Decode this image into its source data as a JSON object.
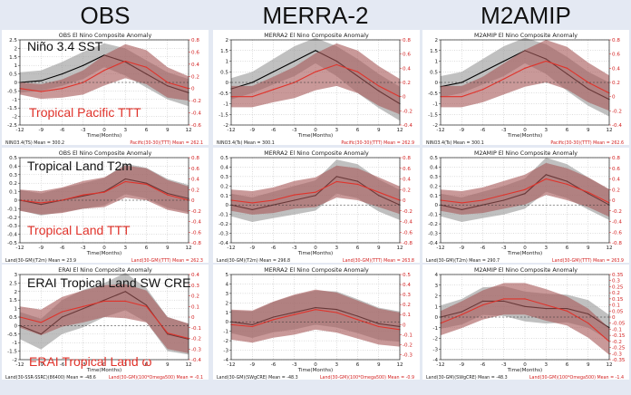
{
  "columns": [
    "OBS",
    "MERRA-2",
    "M2AMIP"
  ],
  "x_ticks": [
    "-12",
    "-9",
    "-6",
    "-3",
    "0",
    "3",
    "6",
    "9",
    "12"
  ],
  "xlabel": "Time(Months)",
  "series_colors": {
    "black_line": "#000000",
    "gray_band": "#9a9a9a",
    "red_line": "#e0332b",
    "red_band": "#a85a5a"
  },
  "chart_data": [
    {
      "type": "line",
      "row": 0,
      "col": 0,
      "title": "OBS El Nino Composite Anomaly",
      "annotation_black": "Niño 3.4 SST",
      "annotation_red": "Tropical Pacific TTT",
      "xlabel": "Time(Months)",
      "x": [
        -12,
        -9,
        -6,
        -3,
        0,
        3,
        6,
        9,
        12
      ],
      "left_ylim": [
        -2.5,
        2.5
      ],
      "left_ticks": [
        "-2.5",
        "-2",
        "-1.5",
        "-1",
        "-0.5",
        "0",
        "0.5",
        "1",
        "1.5",
        "2",
        "2.5"
      ],
      "right_ylim": [
        -0.6,
        0.8
      ],
      "right_ticks": [
        "-0.6",
        "-0.4",
        "-0.2",
        "0",
        "0.2",
        "0.4",
        "0.6",
        "0.8"
      ],
      "series": [
        {
          "axis": "left",
          "values": [
            0.0,
            0.1,
            0.5,
            1.0,
            1.6,
            1.2,
            0.5,
            -0.2,
            -0.6
          ],
          "band": [
            0.6,
            0.6,
            0.7,
            0.8,
            0.7,
            0.8,
            0.8,
            0.8,
            0.8
          ]
        },
        {
          "axis": "right",
          "values": [
            0.0,
            -0.05,
            0.0,
            0.1,
            0.3,
            0.45,
            0.35,
            0.1,
            0.0
          ],
          "band": [
            0.1,
            0.12,
            0.15,
            0.2,
            0.25,
            0.28,
            0.28,
            0.25,
            0.2
          ]
        }
      ],
      "footer_left": "NINO3.4(TS) Mean = 300.2",
      "footer_right": "Pacific(30-30)(TTT) Mean = 262.1"
    },
    {
      "type": "line",
      "row": 0,
      "col": 1,
      "title": "MERRA2 El Nino Composite Anomaly",
      "xlabel": "Time(Months)",
      "x": [
        -12,
        -9,
        -6,
        -3,
        0,
        3,
        6,
        9,
        12
      ],
      "left_ylim": [
        -2,
        2
      ],
      "left_ticks": [
        "-2",
        "-1.5",
        "-1",
        "-0.5",
        "0",
        "0.5",
        "1",
        "1.5",
        "2"
      ],
      "right_ylim": [
        -0.4,
        0.8
      ],
      "right_ticks": [
        "-0.4",
        "-0.2",
        "0",
        "0.2",
        "0.4",
        "0.6",
        "0.8"
      ],
      "series": [
        {
          "axis": "left",
          "values": [
            -0.3,
            0.0,
            0.5,
            1.0,
            1.5,
            1.0,
            0.3,
            -0.4,
            -1.0
          ],
          "band": [
            0.5,
            0.5,
            0.6,
            0.7,
            0.6,
            0.7,
            0.8,
            0.8,
            0.8
          ]
        },
        {
          "axis": "right",
          "values": [
            0.0,
            0.0,
            0.1,
            0.2,
            0.35,
            0.45,
            0.35,
            0.15,
            0.0
          ],
          "band": [
            0.15,
            0.15,
            0.18,
            0.22,
            0.26,
            0.3,
            0.3,
            0.28,
            0.25
          ]
        }
      ],
      "footer_left": "NINO3.4(Ts) Mean = 300.1",
      "footer_right": "Pacific(30-30)(TTT) Mean = 262.9"
    },
    {
      "type": "line",
      "row": 0,
      "col": 2,
      "title": "M2AMIP El Nino Composite Anomaly",
      "xlabel": "Time(Months)",
      "x": [
        -12,
        -9,
        -6,
        -3,
        0,
        3,
        6,
        9,
        12
      ],
      "left_ylim": [
        -2,
        2
      ],
      "left_ticks": [
        "-2",
        "-1.5",
        "-1",
        "-0.5",
        "0",
        "0.5",
        "1",
        "1.5",
        "2"
      ],
      "right_ylim": [
        -0.4,
        0.8
      ],
      "right_ticks": [
        "-0.4",
        "-0.2",
        "0",
        "0.2",
        "0.4",
        "0.6",
        "0.8"
      ],
      "series": [
        {
          "axis": "left",
          "values": [
            -0.2,
            0.0,
            0.5,
            1.0,
            1.5,
            1.1,
            0.4,
            -0.3,
            -0.8
          ],
          "band": [
            0.5,
            0.5,
            0.6,
            0.7,
            0.6,
            0.7,
            0.8,
            0.8,
            0.8
          ]
        },
        {
          "axis": "right",
          "values": [
            0.0,
            0.0,
            0.1,
            0.25,
            0.4,
            0.5,
            0.4,
            0.2,
            0.05
          ],
          "band": [
            0.15,
            0.15,
            0.18,
            0.22,
            0.26,
            0.3,
            0.3,
            0.28,
            0.25
          ]
        }
      ],
      "footer_left": "NINO3.4(Ts) Mean = 300.1",
      "footer_right": "Pacific(30-30)(TTT) Mean = 262.6"
    },
    {
      "type": "line",
      "row": 1,
      "col": 0,
      "title": "OBS El Nino Composite Anomaly",
      "annotation_black": "Tropical Land T2m",
      "annotation_red": "Tropical Land TTT",
      "xlabel": "Time(Months)",
      "x": [
        -12,
        -9,
        -6,
        -3,
        0,
        3,
        6,
        9,
        12
      ],
      "left_ylim": [
        -0.5,
        0.5
      ],
      "left_ticks": [
        "-0.5",
        "-0.4",
        "-0.3",
        "-0.2",
        "-0.1",
        "0",
        "0.1",
        "0.2",
        "0.3",
        "0.4",
        "0.5"
      ],
      "right_ylim": [
        -0.8,
        0.8
      ],
      "right_ticks": [
        "-0.8",
        "-0.6",
        "-0.4",
        "-0.2",
        "0",
        "0.2",
        "0.4",
        "0.6",
        "0.8"
      ],
      "series": [
        {
          "axis": "left",
          "values": [
            0.0,
            -0.05,
            0.0,
            0.05,
            0.1,
            0.25,
            0.2,
            0.08,
            0.02
          ],
          "band": [
            0.12,
            0.13,
            0.14,
            0.15,
            0.16,
            0.18,
            0.18,
            0.17,
            0.16
          ]
        },
        {
          "axis": "right",
          "values": [
            0.0,
            -0.05,
            0.0,
            0.1,
            0.15,
            0.35,
            0.3,
            0.1,
            0.0
          ],
          "band": [
            0.2,
            0.22,
            0.24,
            0.26,
            0.28,
            0.3,
            0.3,
            0.28,
            0.26
          ]
        }
      ],
      "footer_left": "Land(30-GM)(T2m) Mean = 23.9",
      "footer_right": "Land(30-GM)(TTT) Mean = 262.3"
    },
    {
      "type": "line",
      "row": 1,
      "col": 1,
      "title": "MERRA2 El Nino Composite Anomaly",
      "xlabel": "Time(Months)",
      "x": [
        -12,
        -9,
        -6,
        -3,
        0,
        3,
        6,
        9,
        12
      ],
      "left_ylim": [
        -0.4,
        0.5
      ],
      "left_ticks": [
        "-0.4",
        "-0.3",
        "-0.2",
        "-0.1",
        "0",
        "0.1",
        "0.2",
        "0.3",
        "0.4",
        "0.5"
      ],
      "right_ylim": [
        -0.8,
        0.8
      ],
      "right_ticks": [
        "-0.8",
        "-0.6",
        "-0.4",
        "-0.2",
        "0",
        "0.2",
        "0.4",
        "0.6",
        "0.8"
      ],
      "series": [
        {
          "axis": "left",
          "values": [
            0.0,
            -0.05,
            0.0,
            0.05,
            0.1,
            0.3,
            0.25,
            0.1,
            0.0
          ],
          "band": [
            0.12,
            0.13,
            0.14,
            0.15,
            0.16,
            0.18,
            0.18,
            0.17,
            0.16
          ]
        },
        {
          "axis": "right",
          "values": [
            0.0,
            -0.05,
            0.0,
            0.1,
            0.15,
            0.35,
            0.3,
            0.15,
            0.0
          ],
          "band": [
            0.2,
            0.22,
            0.24,
            0.26,
            0.28,
            0.3,
            0.3,
            0.28,
            0.26
          ]
        }
      ],
      "footer_left": "Land(30-GM)(T2m) Mean = 296.8",
      "footer_right": "Land(30-GM)(TTT) Mean = 263.8"
    },
    {
      "type": "line",
      "row": 1,
      "col": 2,
      "title": "M2AMIP El Nino Composite Anomaly",
      "xlabel": "Time(Months)",
      "x": [
        -12,
        -9,
        -6,
        -3,
        0,
        3,
        6,
        9,
        12
      ],
      "left_ylim": [
        -0.4,
        0.5
      ],
      "left_ticks": [
        "-0.4",
        "-0.3",
        "-0.2",
        "-0.1",
        "0",
        "0.1",
        "0.2",
        "0.3",
        "0.4",
        "0.5"
      ],
      "right_ylim": [
        -0.8,
        0.8
      ],
      "right_ticks": [
        "-0.8",
        "-0.6",
        "-0.4",
        "-0.2",
        "0",
        "0.2",
        "0.4",
        "0.6",
        "0.8"
      ],
      "series": [
        {
          "axis": "left",
          "values": [
            0.0,
            -0.05,
            0.0,
            0.05,
            0.12,
            0.32,
            0.25,
            0.12,
            0.0
          ],
          "band": [
            0.12,
            0.13,
            0.14,
            0.15,
            0.16,
            0.18,
            0.18,
            0.17,
            0.16
          ]
        },
        {
          "axis": "right",
          "values": [
            0.0,
            -0.05,
            0.0,
            0.1,
            0.2,
            0.4,
            0.3,
            0.15,
            -0.05
          ],
          "band": [
            0.2,
            0.22,
            0.24,
            0.26,
            0.28,
            0.3,
            0.3,
            0.28,
            0.26
          ]
        }
      ],
      "footer_left": "Land(30-GM)(T2m) Mean = 290.7",
      "footer_right": "Land(30-GM)(TTT) Mean = 263.9"
    },
    {
      "type": "line",
      "row": 2,
      "col": 0,
      "title": "ERAI El Nino Composite Anomaly",
      "annotation_black": "ERAI Tropical Land SW CRE",
      "annotation_red": "ERAI Tropical Land ω",
      "xlabel": "Time(Months)",
      "x": [
        -12,
        -9,
        -6,
        -3,
        0,
        3,
        6,
        9,
        12
      ],
      "left_ylim": [
        -2,
        3
      ],
      "left_ticks": [
        "-2",
        "-1.5",
        "-1",
        "-0.5",
        "0",
        "0.5",
        "1",
        "1.5",
        "2",
        "2.5",
        "3"
      ],
      "right_ylim": [
        -0.4,
        0.4
      ],
      "right_ticks": [
        "-0.4",
        "-0.3",
        "-0.2",
        "-0.1",
        "0",
        "0.1",
        "0.2",
        "0.3",
        "0.4"
      ],
      "series": [
        {
          "axis": "left",
          "values": [
            0.0,
            -0.5,
            0.5,
            1.0,
            1.5,
            2.0,
            1.2,
            -0.5,
            -0.8
          ],
          "band": [
            0.8,
            0.9,
            1.0,
            1.1,
            1.0,
            1.1,
            1.0,
            1.0,
            0.9
          ]
        },
        {
          "axis": "right",
          "values": [
            0.0,
            -0.05,
            0.05,
            0.1,
            0.15,
            0.15,
            0.1,
            -0.15,
            -0.2
          ],
          "band": [
            0.1,
            0.12,
            0.14,
            0.15,
            0.15,
            0.16,
            0.15,
            0.15,
            0.14
          ]
        }
      ],
      "footer_left": "Land(30-SSR-SSRC)(86400) Mean = -48.6",
      "footer_right": "Land(30-GM)(100*Omega500) Mean = -0.1"
    },
    {
      "type": "line",
      "row": 2,
      "col": 1,
      "title": "MERRA2 El Nino Composite Anomaly",
      "xlabel": "Time(Months)",
      "x": [
        -12,
        -9,
        -6,
        -3,
        0,
        3,
        6,
        9,
        12
      ],
      "left_ylim": [
        -4,
        5
      ],
      "left_ticks": [
        "-4",
        "-3",
        "-2",
        "-1",
        "0",
        "1",
        "2",
        "3",
        "4",
        "5"
      ],
      "right_ylim": [
        -0.35,
        0.5
      ],
      "right_ticks": [
        "-0.3",
        "-0.2",
        "-0.1",
        "0",
        "0.1",
        "0.2",
        "0.3",
        "0.4",
        "0.5"
      ],
      "series": [
        {
          "axis": "left",
          "values": [
            0.0,
            -0.3,
            0.5,
            1.0,
            1.5,
            1.3,
            0.6,
            -0.2,
            -0.5
          ],
          "band": [
            1.2,
            1.4,
            1.6,
            1.8,
            1.8,
            1.9,
            1.8,
            1.7,
            1.6
          ]
        },
        {
          "axis": "right",
          "values": [
            0.0,
            -0.02,
            0.05,
            0.1,
            0.15,
            0.12,
            0.05,
            -0.02,
            -0.05
          ],
          "band": [
            0.15,
            0.16,
            0.18,
            0.2,
            0.2,
            0.2,
            0.19,
            0.18,
            0.17
          ]
        }
      ],
      "footer_left": "Land(30-GM)(SWgCRE) Mean = -48.3",
      "footer_right": "Land(30-GM)(100*Omega500) Mean = -0.9"
    },
    {
      "type": "line",
      "row": 2,
      "col": 2,
      "title": "M2AMIP El Nino Composite Anomaly",
      "xlabel": "Time(Months)",
      "x": [
        -12,
        -9,
        -6,
        -3,
        0,
        3,
        6,
        9,
        12
      ],
      "left_ylim": [
        -4,
        4
      ],
      "left_ticks": [
        "-4",
        "-3",
        "-2",
        "-1",
        "0",
        "1",
        "2",
        "3",
        "4"
      ],
      "right_ylim": [
        -0.35,
        0.35
      ],
      "right_ticks": [
        "-0.35",
        "-0.3",
        "-0.25",
        "-0.2",
        "-0.15",
        "-0.1",
        "-0.05",
        "0",
        "0.05",
        "0.1",
        "0.15",
        "0.2",
        "0.25",
        "0.3",
        "0.35"
      ],
      "series": [
        {
          "axis": "left",
          "values": [
            0.0,
            0.5,
            1.5,
            1.5,
            1.0,
            0.8,
            0.8,
            0.3,
            -1.0
          ],
          "band": [
            1.1,
            1.2,
            1.3,
            1.4,
            1.4,
            1.4,
            1.3,
            1.3,
            1.2
          ]
        },
        {
          "axis": "right",
          "values": [
            -0.05,
            0.02,
            0.1,
            0.15,
            0.15,
            0.1,
            0.05,
            -0.05,
            -0.2
          ],
          "band": [
            0.1,
            0.11,
            0.12,
            0.13,
            0.13,
            0.13,
            0.12,
            0.12,
            0.11
          ]
        }
      ],
      "footer_left": "Land(30-GM)(SWgCRE) Mean = -48.3",
      "footer_right": "Land(30-GM)(100*Omega500) Mean = -1.4"
    }
  ]
}
